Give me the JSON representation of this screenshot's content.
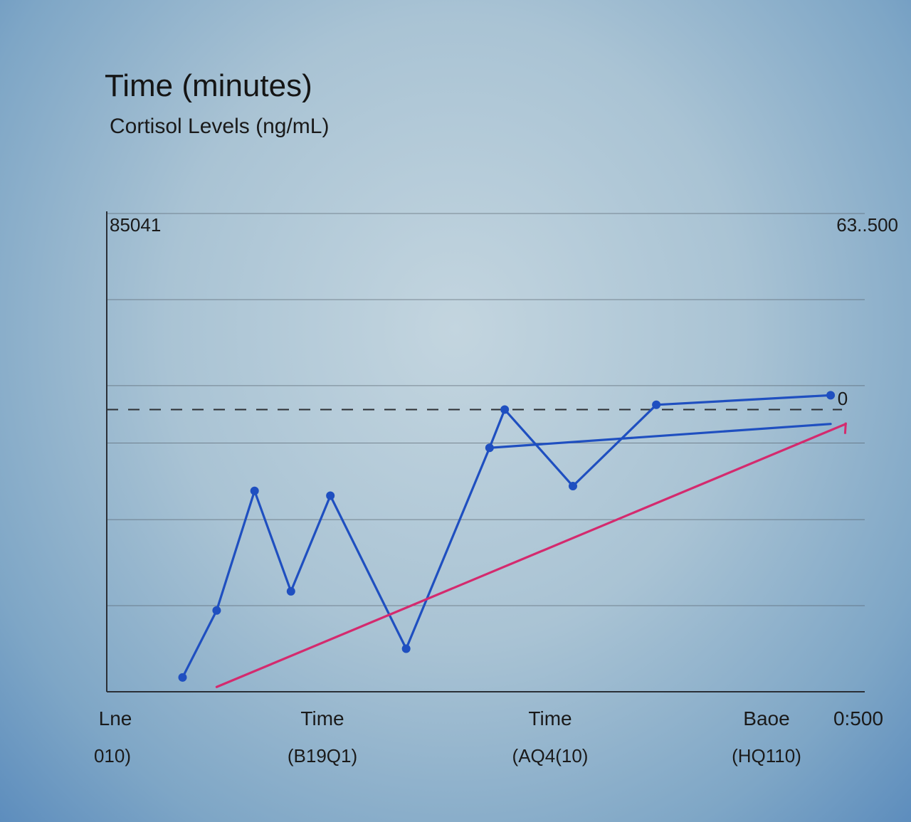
{
  "chart_data": {
    "type": "line",
    "title": "Time (minutes)",
    "subtitle": "Cortisol Levels (ng/mL)",
    "corner_labels": {
      "top_left": "85041",
      "top_right": "63..500",
      "line_end": "0"
    },
    "x_tick_labels": [
      {
        "label": "Lne",
        "sub": "010)"
      },
      {
        "label": "Time",
        "sub": "(B19Q1)"
      },
      {
        "label": "Time",
        "sub": "(AQ4(10)"
      },
      {
        "label": "Baoe",
        "sub": "(HQ110)"
      },
      {
        "label": "0:500",
        "sub": ""
      }
    ],
    "xlim": [
      0,
      100
    ],
    "ylim": [
      0,
      100
    ],
    "grid": true,
    "reference_line": {
      "style": "dashed",
      "y": 59
    },
    "series": [
      {
        "color": "#1f4fc0",
        "marker": "circle",
        "points": [
          {
            "x": 10,
            "y": 3
          },
          {
            "x": 14.5,
            "y": 17
          },
          {
            "x": 19.5,
            "y": 42
          },
          {
            "x": 24.3,
            "y": 21
          },
          {
            "x": 29.5,
            "y": 41
          },
          {
            "x": 39.5,
            "y": 9
          },
          {
            "x": 50.5,
            "y": 51
          },
          {
            "x": 52.5,
            "y": 59
          },
          {
            "x": 61.5,
            "y": 43
          },
          {
            "x": 72.5,
            "y": 60
          },
          {
            "x": 95.5,
            "y": 62
          }
        ]
      },
      {
        "color": "#1f4fc0",
        "marker": "none",
        "points": [
          {
            "x": 50.5,
            "y": 51
          },
          {
            "x": 95.5,
            "y": 56
          }
        ]
      },
      {
        "color": "#d42a6e",
        "marker": "none",
        "points": [
          {
            "x": 14.5,
            "y": 1
          },
          {
            "x": 97.5,
            "y": 56
          }
        ]
      }
    ]
  }
}
